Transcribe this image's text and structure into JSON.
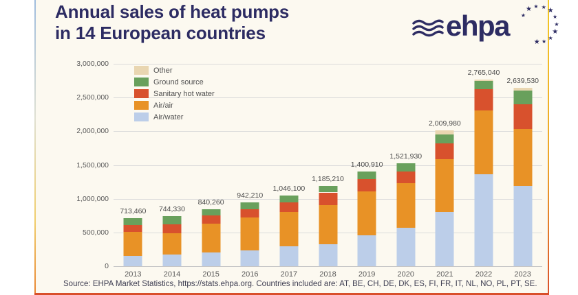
{
  "header": {
    "title_line1": "Annual sales of heat pumps",
    "title_line2": "in 14 European countries",
    "logo_text": "ehpa"
  },
  "footer": {
    "source": "Source: EHPA Market Statistics, https://stats.ehpa.org. Countries included are: AT, BE, CH, DE, DK, ES, FI, FR, IT, NL, NO, PL, PT, SE."
  },
  "colors": {
    "brand_navy": "#2d2c63",
    "card_background": "#fcf9f0",
    "gridline": "#dadada",
    "axis_text": "#595959",
    "data_label_text": "#4a4a4a",
    "edge_left_top": "#9fbcdd",
    "edge_right_top": "#f3c825",
    "edge_bottom": "#d94f2b"
  },
  "chart_data": {
    "type": "bar",
    "stacked": true,
    "title": "Annual sales of heat pumps in 14 European countries",
    "xlabel": "",
    "ylabel": "",
    "grid": true,
    "legend_position": "top-left",
    "legend_order_top_to_bottom": [
      "Other",
      "Ground source",
      "Sanitary hot water",
      "Air/water",
      "Air/air"
    ],
    "categories": [
      "2013",
      "2014",
      "2015",
      "2016",
      "2017",
      "2018",
      "2019",
      "2020",
      "2021",
      "2022",
      "2023"
    ],
    "totals": [
      713460,
      744330,
      840260,
      942210,
      1046100,
      1185210,
      1400910,
      1521930,
      2009980,
      2765040,
      2639530
    ],
    "total_labels": [
      "713,460",
      "744,330",
      "840,260",
      "942,210",
      "1,046,100",
      "1,185,210",
      "1,400,910",
      "1,521,930",
      "2,009,980",
      "2,765,040",
      "2,639,530"
    ],
    "series": [
      {
        "name": "Air/water",
        "color": "#bccee9",
        "values": [
          154000,
          175000,
          205000,
          236000,
          298000,
          329000,
          462000,
          565000,
          801000,
          1366000,
          1191000
        ]
      },
      {
        "name": "Air/air",
        "color": "#e89226",
        "values": [
          349460,
          313330,
          430260,
          490210,
          501100,
          579210,
          650910,
          669930,
          787980,
          938040,
          842530
        ]
      },
      {
        "name": "Sanitary hot water",
        "color": "#d8512d",
        "values": [
          103000,
          133000,
          113000,
          113000,
          144000,
          185000,
          175000,
          164000,
          236000,
          318000,
          370000
        ]
      },
      {
        "name": "Ground source",
        "color": "#69a05c",
        "values": [
          107000,
          123000,
          92000,
          103000,
          103000,
          92000,
          113000,
          123000,
          123000,
          123000,
          195000
        ]
      },
      {
        "name": "Other",
        "color": "#e9d6b1",
        "values": [
          0,
          0,
          0,
          0,
          0,
          0,
          0,
          0,
          62000,
          20000,
          41000
        ]
      }
    ],
    "ylim": [
      0,
      3000000
    ],
    "yticks": [
      {
        "value": 0,
        "label": "0"
      },
      {
        "value": 500000,
        "label": "500,000"
      },
      {
        "value": 1000000,
        "label": "1,000,000"
      },
      {
        "value": 1500000,
        "label": "1,500,000"
      },
      {
        "value": 2000000,
        "label": "2,000,000"
      },
      {
        "value": 2500000,
        "label": "2,500,000"
      },
      {
        "value": 3000000,
        "label": "3,000,000"
      }
    ]
  }
}
